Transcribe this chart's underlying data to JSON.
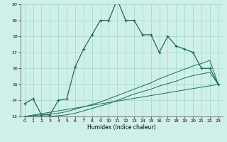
{
  "xlabel": "Humidex (Indice chaleur)",
  "bg_color": "#cff0e8",
  "grid_color": "#aaddd3",
  "line_color": "#1a6b5a",
  "xlim": [
    -0.5,
    23.5
  ],
  "ylim": [
    13,
    20
  ],
  "xticks": [
    0,
    1,
    2,
    3,
    4,
    5,
    6,
    7,
    8,
    9,
    10,
    11,
    12,
    13,
    14,
    15,
    16,
    17,
    18,
    19,
    20,
    21,
    22,
    23
  ],
  "yticks": [
    13,
    14,
    15,
    16,
    17,
    18,
    19,
    20
  ],
  "series1_x": [
    0,
    1,
    2,
    3,
    4,
    5,
    6,
    7,
    8,
    9,
    10,
    11,
    12,
    13,
    14,
    15,
    16,
    17,
    18,
    19,
    20,
    21,
    22,
    23
  ],
  "series1_y": [
    13.8,
    14.1,
    13.1,
    13.1,
    14.0,
    14.1,
    16.1,
    17.2,
    18.1,
    19.0,
    19.0,
    20.3,
    19.0,
    19.0,
    18.1,
    18.1,
    17.0,
    18.0,
    17.4,
    17.2,
    17.0,
    16.0,
    16.0,
    15.0
  ],
  "series2_x": [
    0,
    1,
    2,
    3,
    4,
    5,
    6,
    7,
    8,
    9,
    10,
    11,
    12,
    13,
    14,
    15,
    16,
    17,
    18,
    19,
    20,
    21,
    22,
    23
  ],
  "series2_y": [
    13.0,
    13.05,
    13.1,
    13.15,
    13.2,
    13.3,
    13.45,
    13.6,
    13.75,
    13.9,
    14.1,
    14.3,
    14.5,
    14.7,
    14.9,
    15.1,
    15.35,
    15.55,
    15.75,
    15.95,
    16.15,
    16.3,
    16.5,
    15.0
  ],
  "series3_x": [
    0,
    1,
    2,
    3,
    4,
    5,
    6,
    7,
    8,
    9,
    10,
    11,
    12,
    13,
    14,
    15,
    16,
    17,
    18,
    19,
    20,
    21,
    22,
    23
  ],
  "series3_y": [
    13.0,
    13.0,
    13.0,
    13.0,
    13.05,
    13.1,
    13.2,
    13.35,
    13.5,
    13.65,
    13.8,
    14.0,
    14.2,
    14.4,
    14.55,
    14.7,
    14.9,
    15.05,
    15.2,
    15.4,
    15.55,
    15.65,
    15.75,
    15.0
  ],
  "series4_x": [
    0,
    23
  ],
  "series4_y": [
    13.0,
    15.0
  ]
}
